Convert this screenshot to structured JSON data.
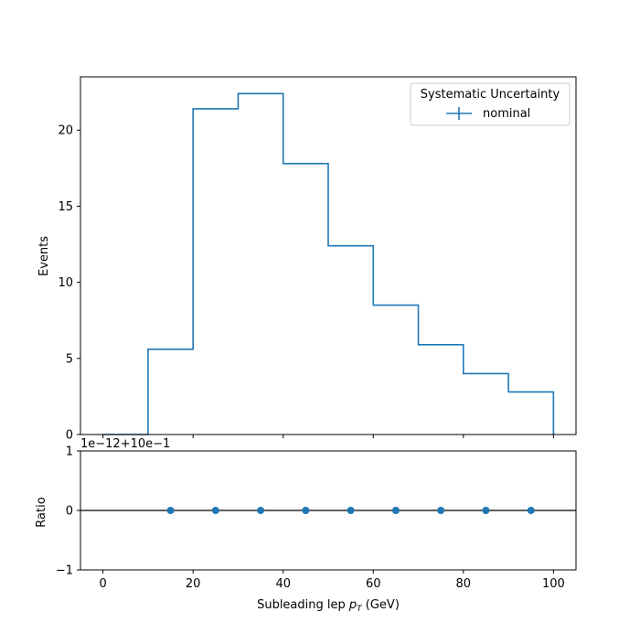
{
  "chart_data": [
    {
      "type": "line",
      "subtype": "step-histogram",
      "title": "",
      "xlabel": "",
      "ylabel": "Events",
      "xlim": [
        -5,
        105
      ],
      "ylim": [
        0,
        23.5
      ],
      "bin_edges": [
        0,
        10,
        20,
        30,
        40,
        50,
        60,
        70,
        80,
        90,
        100
      ],
      "series": [
        {
          "name": "nominal",
          "values": [
            0,
            5.6,
            21.4,
            22.4,
            17.8,
            12.4,
            8.5,
            5.9,
            4.0,
            2.8
          ],
          "color": "#1f77b4"
        }
      ],
      "yticks": [
        0,
        5,
        10,
        15,
        20
      ],
      "ytick_labels": [
        "0",
        "5",
        "10",
        "15",
        "20"
      ],
      "legend": {
        "title": "Systematic Uncertainty",
        "placement": "top-right",
        "entries": [
          "nominal"
        ]
      },
      "grid": false
    },
    {
      "type": "scatter",
      "title": "",
      "xlabel": "Subleading lep p_T (GeV)",
      "xlabel_parts": {
        "pre": "Subleading lep ",
        "var": "p",
        "sub": "T",
        "post": " (GeV)"
      },
      "ylabel": "Ratio",
      "xlim": [
        -5,
        105
      ],
      "ylim": [
        -1,
        1
      ],
      "offset_text": "1e−12+10e−1",
      "x": [
        15,
        25,
        35,
        45,
        55,
        65,
        75,
        85,
        95
      ],
      "y": [
        0,
        0,
        0,
        0,
        0,
        0,
        0,
        0,
        0
      ],
      "reference_line": 0,
      "xticks": [
        0,
        20,
        40,
        60,
        80,
        100
      ],
      "xtick_labels": [
        "0",
        "20",
        "40",
        "60",
        "80",
        "100"
      ],
      "yticks": [
        -1,
        0,
        1
      ],
      "ytick_labels": [
        "−1",
        "0",
        "1"
      ],
      "color": "#1f77b4",
      "grid": false
    }
  ]
}
